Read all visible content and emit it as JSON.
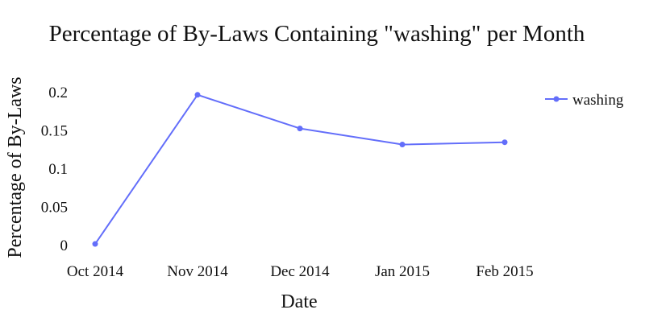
{
  "chart_data": {
    "type": "line",
    "title": "Percentage of By-Laws Containing \"washing\" per Month",
    "xlabel": "Date",
    "ylabel": "Percentage of By-Laws",
    "categories": [
      "Oct 2014",
      "Nov 2014",
      "Dec 2014",
      "Jan 2015",
      "Feb 2015"
    ],
    "y_ticks": [
      0,
      0.05,
      0.1,
      0.15,
      0.2
    ],
    "y_tick_labels": [
      "0",
      "0.05",
      "0.1",
      "0.15",
      "0.2"
    ],
    "ylim": [
      0,
      0.2
    ],
    "grid": false,
    "legend_position": "top-right",
    "series": [
      {
        "name": "washing",
        "values": [
          0.001,
          0.196,
          0.152,
          0.131,
          0.134
        ],
        "color": "#636efa"
      }
    ]
  }
}
